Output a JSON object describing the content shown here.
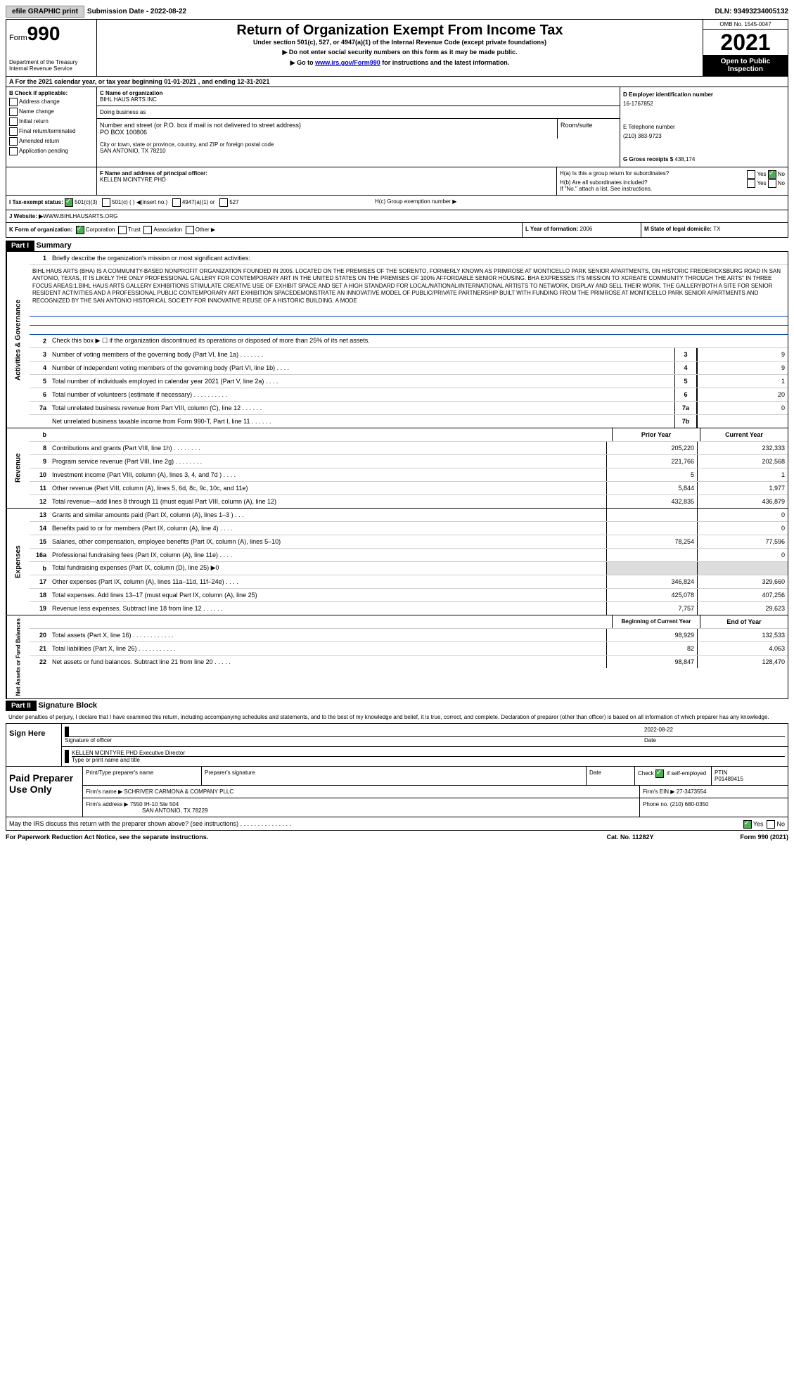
{
  "top": {
    "efile": "efile GRAPHIC print",
    "sub_label": "Submission Date - ",
    "sub_date": "2022-08-22",
    "dln_label": "DLN: ",
    "dln": "93493234005132"
  },
  "header": {
    "form_label": "Form",
    "form_num": "990",
    "dept": "Department of the Treasury",
    "irs": "Internal Revenue Service",
    "title": "Return of Organization Exempt From Income Tax",
    "under": "Under section 501(c), 527, or 4947(a)(1) of the Internal Revenue Code (except private foundations)",
    "ssn": "▶ Do not enter social security numbers on this form as it may be made public.",
    "goto": "▶ Go to ",
    "goto_url": "www.irs.gov/Form990",
    "goto_after": " for instructions and the latest information.",
    "omb": "OMB No. 1545-0047",
    "year": "2021",
    "open": "Open to Public Inspection"
  },
  "section_a": "A For the 2021 calendar year, or tax year beginning 01-01-2021   , and ending 12-31-2021",
  "section_b": {
    "title": "B Check if applicable:",
    "items": [
      "Address change",
      "Name change",
      "Initial return",
      "Final return/terminated",
      "Amended return",
      "Application pending"
    ]
  },
  "section_c": {
    "name_label": "C Name of organization",
    "name": "BIHL HAUS ARTS INC",
    "dba": "Doing business as",
    "street_label": "Number and street (or P.O. box if mail is not delivered to street address)",
    "street": "PO BOX 100806",
    "room_label": "Room/suite",
    "city_label": "City or town, state or province, country, and ZIP or foreign postal code",
    "city": "SAN ANTONIO, TX  78210"
  },
  "section_d": {
    "ein_label": "D Employer identification number",
    "ein": "16-1767852",
    "tel_label": "E Telephone number",
    "tel": "(210) 383-9723",
    "gross_label": "G Gross receipts $ ",
    "gross": "438,174"
  },
  "section_f": {
    "label": "F  Name and address of principal officer:",
    "name": "KELLEN MCINTYRE PHD"
  },
  "section_h": {
    "ha": "H(a)  Is this a group return for subordinates?",
    "hb": "H(b)  Are all subordinates included?",
    "hb_note": "If \"No,\" attach a list. See instructions.",
    "hc": "H(c)  Group exemption number ▶",
    "yes": "Yes",
    "no": "No"
  },
  "section_i": {
    "label": "I   Tax-exempt status:",
    "opts": [
      "501(c)(3)",
      "501(c) (  ) ◀(insert no.)",
      "4947(a)(1) or",
      "527"
    ]
  },
  "section_j": {
    "label": "J   Website: ▶",
    "url": "  WWW.BIHLHAUSARTS.ORG"
  },
  "section_k": {
    "label": "K Form of organization:",
    "opts": [
      "Corporation",
      "Trust",
      "Association",
      "Other ▶"
    ]
  },
  "section_l": {
    "year_label": "L Year of formation: ",
    "year": "2006",
    "state_label": "M State of legal domicile: ",
    "state": "TX"
  },
  "part1": {
    "header": "Part I",
    "title": "Summary",
    "line1_label": "Briefly describe the organization's mission or most significant activities:",
    "mission": "BIHL HAUS ARTS (BHA) IS A COMMUNITY-BASED NONPROFIT ORGANIZATION FOUNDED IN 2005. LOCATED ON THE PREMISES OF THE SORENTO, FORMERLY KNOWN AS PRIMROSE AT MONTICELLO PARK SENIOR APARTMENTS, ON HISTORIC FREDERICKSBURG ROAD IN SAN ANTONIO, TEXAS, IT IS LIKELY THE ONLY PROFESSIONAL GALLERY FOR CONTEMPORARY ART IN THE UNITED STATES ON THE PREMISES OF 100% AFFORDABLE SENIOR HOUSING. BHA EXPRESSES ITS MISSION TO XCREATE COMMUNITY THROUGH THE ARTS\" IN THREE FOCUS AREAS:1.BIHL HAUS ARTS GALLERY EXHIBITIONS STIMULATE CREATIVE USE OF EXHIBIT SPACE AND SET A HIGH STANDARD FOR LOCAL/NATIONAL/INTERNATIONAL ARTISTS TO NETWORK, DISPLAY AND SELL THEIR WORK. THE GALLERYBOTH A SITE FOR SENIOR RESIDENT ACTIVITIES AND A PROFESSIONAL PUBLIC CONTEMPORARY ART EXHIBITION SPACEDEMONSTRATE AN INNOVATIVE MODEL OF PUBLIC/PRIVATE PARTNERSHIP BUILT WITH FUNDING FROM THE PRIMROSE AT MONTICELLO PARK SENIOR APARTMENTS AND RECOGNIZED BY THE SAN ANTONIO HISTORICAL SOCIETY FOR INNOVATIVE REUSE OF A HISTORIC BUILDING, A MODE",
    "line2": "Check this box ▶ ☐ if the organization discontinued its operations or disposed of more than 25% of its net assets.",
    "sides": {
      "gov": "Activities & Governance",
      "rev": "Revenue",
      "exp": "Expenses",
      "net": "Net Assets or Fund Balances"
    },
    "lines_single": [
      {
        "n": "3",
        "t": "Number of voting members of the governing body (Part VI, line 1a)   .   .   .   .   .   .   .",
        "box": "3",
        "v": "9"
      },
      {
        "n": "4",
        "t": "Number of independent voting members of the governing body (Part VI, line 1b)   .   .   .   .",
        "box": "4",
        "v": "9"
      },
      {
        "n": "5",
        "t": "Total number of individuals employed in calendar year 2021 (Part V, line 2a)   .   .   .   .",
        "box": "5",
        "v": "1"
      },
      {
        "n": "6",
        "t": "Total number of volunteers (estimate if necessary)   .   .   .   .   .   .   .   .   .   .",
        "box": "6",
        "v": "20"
      },
      {
        "n": "7a",
        "t": "Total unrelated business revenue from Part VIII, column (C), line 12   .   .   .   .   .   .",
        "box": "7a",
        "v": "0"
      },
      {
        "n": "",
        "t": "Net unrelated business taxable income from Form 990-T, Part I, line 11  .   .   .   .   .   .",
        "box": "7b",
        "v": ""
      }
    ],
    "col_prior": "Prior Year",
    "col_current": "Current Year",
    "lines_rev": [
      {
        "n": "8",
        "t": "Contributions and grants (Part VIII, line 1h)   .   .   .   .   .   .   .   .",
        "p": "205,220",
        "c": "232,333"
      },
      {
        "n": "9",
        "t": "Program service revenue (Part VIII, line 2g)   .   .   .   .   .   .   .   .",
        "p": "221,766",
        "c": "202,568"
      },
      {
        "n": "10",
        "t": "Investment income (Part VIII, column (A), lines 3, 4, and 7d )   .   .   .   .",
        "p": "5",
        "c": "1"
      },
      {
        "n": "11",
        "t": "Other revenue (Part VIII, column (A), lines 5, 6d, 8c, 9c, 10c, and 11e)",
        "p": "5,844",
        "c": "1,977"
      },
      {
        "n": "12",
        "t": "Total revenue—add lines 8 through 11 (must equal Part VIII, column (A), line 12)",
        "p": "432,835",
        "c": "436,879"
      }
    ],
    "lines_exp": [
      {
        "n": "13",
        "t": "Grants and similar amounts paid (Part IX, column (A), lines 1–3 )   .   .   .",
        "p": "",
        "c": "0"
      },
      {
        "n": "14",
        "t": "Benefits paid to or for members (Part IX, column (A), line 4)   .   .   .   .",
        "p": "",
        "c": "0"
      },
      {
        "n": "15",
        "t": "Salaries, other compensation, employee benefits (Part IX, column (A), lines 5–10)",
        "p": "78,254",
        "c": "77,596"
      },
      {
        "n": "16a",
        "t": "Professional fundraising fees (Part IX, column (A), line 11e)   .   .   .   .",
        "p": "",
        "c": "0"
      },
      {
        "n": "b",
        "t": "Total fundraising expenses (Part IX, column (D), line 25) ▶0",
        "p": "shaded",
        "c": "shaded"
      },
      {
        "n": "17",
        "t": "Other expenses (Part IX, column (A), lines 11a–11d, 11f–24e)   .   .   .   .",
        "p": "346,824",
        "c": "329,660"
      },
      {
        "n": "18",
        "t": "Total expenses. Add lines 13–17 (must equal Part IX, column (A), line 25)",
        "p": "425,078",
        "c": "407,256"
      },
      {
        "n": "19",
        "t": "Revenue less expenses. Subtract line 18 from line 12  .   .   .   .   .   .",
        "p": "7,757",
        "c": "29,623"
      }
    ],
    "col_begin": "Beginning of Current Year",
    "col_end": "End of Year",
    "lines_net": [
      {
        "n": "20",
        "t": "Total assets (Part X, line 16)   .   .   .   .   .   .   .   .   .   .   .   .",
        "p": "98,929",
        "c": "132,533"
      },
      {
        "n": "21",
        "t": "Total liabilities (Part X, line 26)   .   .   .   .   .   .   .   .   .   .   .",
        "p": "82",
        "c": "4,063"
      },
      {
        "n": "22",
        "t": "Net assets or fund balances. Subtract line 21 from line 20   .   .   .   .   .",
        "p": "98,847",
        "c": "128,470"
      }
    ]
  },
  "part2": {
    "header": "Part II",
    "title": "Signature Block",
    "penalties": "Under penalties of perjury, I declare that I have examined this return, including accompanying schedules and statements, and to the best of my knowledge and belief, it is true, correct, and complete. Declaration of preparer (other than officer) is based on all information of which preparer has any knowledge.",
    "sign_here": "Sign Here",
    "sig_officer": "Signature of officer",
    "date_label": "Date",
    "sig_date": "2022-08-22",
    "officer_name": "KELLEN MCINTYRE PHD  Executive Director",
    "type_name": "Type or print name and title",
    "paid": "Paid Preparer Use Only",
    "prep_name_label": "Print/Type preparer's name",
    "prep_sig_label": "Preparer's signature",
    "check_if": "Check",
    "self_emp": "if self-employed",
    "ptin_label": "PTIN",
    "ptin": "P01489415",
    "firm_name_label": "Firm's name   ▶ ",
    "firm_name": "SCHRIVER CARMONA & COMPANY PLLC",
    "firm_ein_label": "Firm's EIN ▶ ",
    "firm_ein": "27-3473554",
    "firm_addr_label": "Firm's address ▶ ",
    "firm_addr": "7550 IH-10 Ste 504",
    "firm_city": "SAN ANTONIO, TX  78229",
    "phone_label": "Phone no. ",
    "phone": "(210) 680-0350",
    "may_irs": "May the IRS discuss this return with the preparer shown above? (see instructions)   .   .   .   .   .   .   .   .   .   .   .   .   .   .   .",
    "yes": "Yes",
    "no": "No"
  },
  "footer": {
    "paperwork": "For Paperwork Reduction Act Notice, see the separate instructions.",
    "cat": "Cat. No. 11282Y",
    "form": "Form 990 (2021)"
  }
}
